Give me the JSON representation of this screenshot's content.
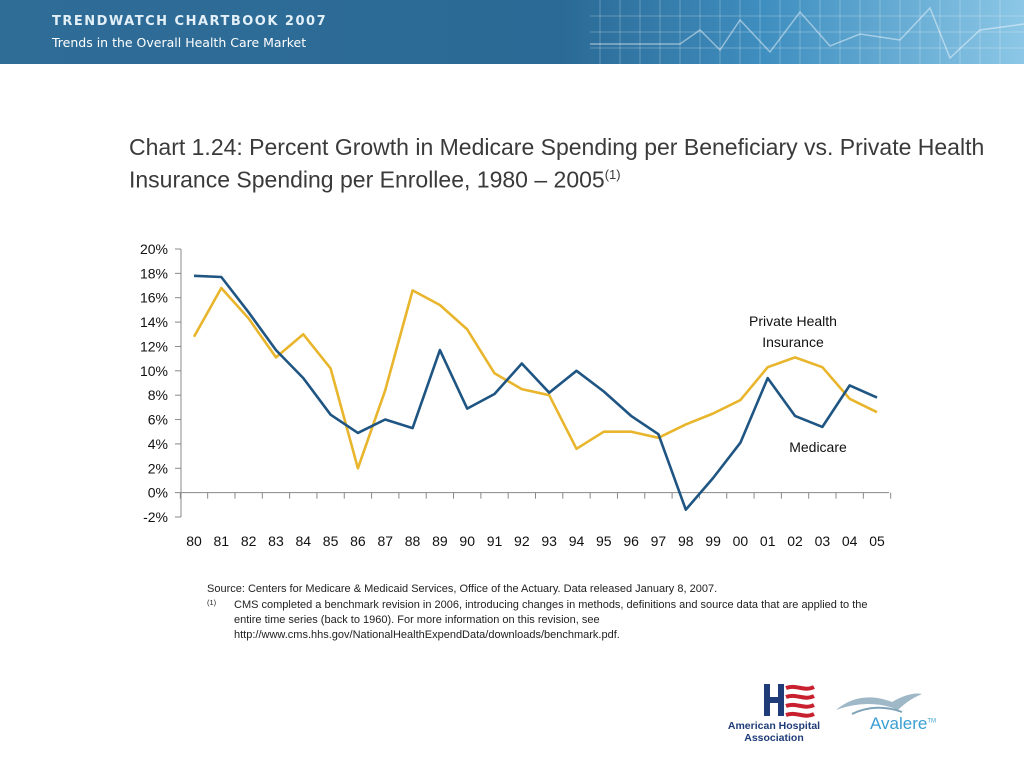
{
  "header": {
    "banner_title": "TRENDWATCH CHARTBOOK 2007",
    "banner_subtitle": "Trends in the Overall Health Care Market"
  },
  "title": {
    "main": "Chart 1.24: Percent Growth in Medicare Spending per Beneficiary vs. Private Health Insurance Spending per Enrollee, 1980 – 2005",
    "footnote_ref": "(1)"
  },
  "chart_data": {
    "type": "line",
    "x": [
      "80",
      "81",
      "82",
      "83",
      "84",
      "85",
      "86",
      "87",
      "88",
      "89",
      "90",
      "91",
      "92",
      "93",
      "94",
      "95",
      "96",
      "97",
      "98",
      "99",
      "00",
      "01",
      "02",
      "03",
      "04",
      "05"
    ],
    "y_ticks": [
      "20%",
      "18%",
      "16%",
      "14%",
      "12%",
      "10%",
      "8%",
      "6%",
      "4%",
      "2%",
      "0%",
      "-2%"
    ],
    "ylim": [
      -2,
      20
    ],
    "grid": false,
    "series": [
      {
        "name": "Medicare",
        "color": "#1f5582",
        "values": [
          17.8,
          17.7,
          14.8,
          11.7,
          9.4,
          6.4,
          4.9,
          6.0,
          5.3,
          11.7,
          6.9,
          8.1,
          10.6,
          8.2,
          10.0,
          8.3,
          6.3,
          4.8,
          -1.4,
          1.2,
          4.1,
          9.4,
          6.3,
          5.4,
          8.8,
          7.8
        ]
      },
      {
        "name": "Private Health Insurance",
        "color": "#e8b52c",
        "values": [
          12.8,
          16.8,
          14.3,
          11.1,
          13.0,
          10.2,
          2.0,
          8.4,
          16.6,
          15.4,
          13.4,
          9.8,
          8.5,
          8.0,
          3.6,
          5.0,
          5.0,
          4.5,
          5.6,
          6.5,
          7.6,
          10.3,
          11.1,
          10.3,
          7.7,
          6.6
        ]
      }
    ],
    "annotations": {
      "private_line1": "Private Health",
      "private_line2": "Insurance",
      "medicare": "Medicare"
    }
  },
  "source": {
    "text": "Source:  Centers for Medicare & Medicaid Services, Office of the Actuary.  Data released January 8, 2007.",
    "note_marker": "(1)",
    "note_text": "CMS completed a benchmark revision in 2006, introducing changes in methods, definitions and source data that are applied to the entire time series (back to 1960).  For more information on this revision, see http://www.cms.hhs.gov/NationalHealthExpendData/downloads/benchmark.pdf."
  },
  "logos": {
    "aha_name": "American Hospital Association",
    "avalere_name": "Avalere",
    "avalere_tm": "TM"
  }
}
